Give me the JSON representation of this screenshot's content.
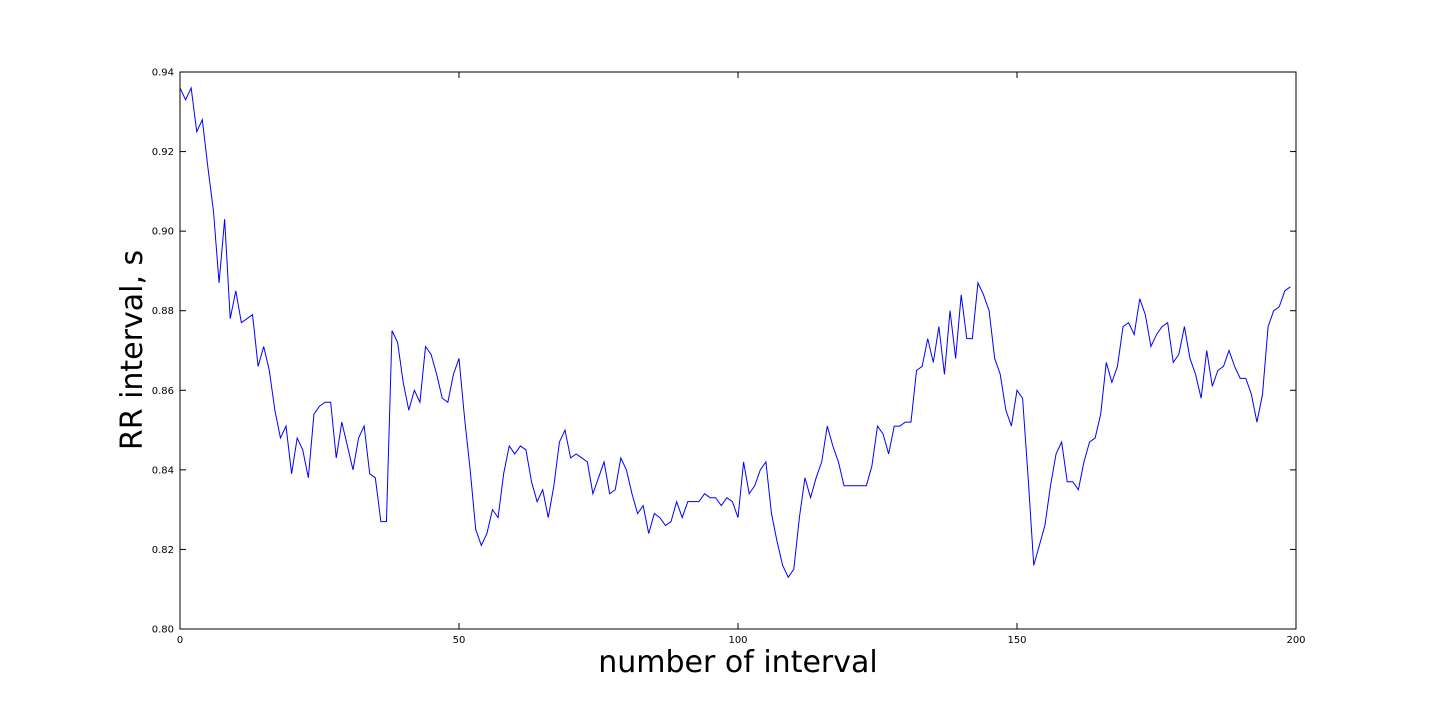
{
  "chart_data": {
    "type": "line",
    "xlabel": "number of interval",
    "ylabel": "RR interval, s",
    "x": [
      0,
      1,
      2,
      3,
      4,
      5,
      6,
      7,
      8,
      9,
      10,
      11,
      12,
      13,
      14,
      15,
      16,
      17,
      18,
      19,
      20,
      21,
      22,
      23,
      24,
      25,
      26,
      27,
      28,
      29,
      30,
      31,
      32,
      33,
      34,
      35,
      36,
      37,
      38,
      39,
      40,
      41,
      42,
      43,
      44,
      45,
      46,
      47,
      48,
      49,
      50,
      51,
      52,
      53,
      54,
      55,
      56,
      57,
      58,
      59,
      60,
      61,
      62,
      63,
      64,
      65,
      66,
      67,
      68,
      69,
      70,
      71,
      72,
      73,
      74,
      75,
      76,
      77,
      78,
      79,
      80,
      81,
      82,
      83,
      84,
      85,
      86,
      87,
      88,
      89,
      90,
      91,
      92,
      93,
      94,
      95,
      96,
      97,
      98,
      99,
      100,
      101,
      102,
      103,
      104,
      105,
      106,
      107,
      108,
      109,
      110,
      111,
      112,
      113,
      114,
      115,
      116,
      117,
      118,
      119,
      120,
      121,
      122,
      123,
      124,
      125,
      126,
      127,
      128,
      129,
      130,
      131,
      132,
      133,
      134,
      135,
      136,
      137,
      138,
      139,
      140,
      141,
      142,
      143,
      144,
      145,
      146,
      147,
      148,
      149,
      150,
      151,
      152,
      153,
      154,
      155,
      156,
      157,
      158,
      159,
      160,
      161,
      162,
      163,
      164,
      165,
      166,
      167,
      168,
      169,
      170,
      171,
      172,
      173,
      174,
      175,
      176,
      177,
      178,
      179,
      180,
      181,
      182,
      183,
      184,
      185,
      186,
      187,
      188,
      189,
      190,
      191,
      192,
      193,
      194,
      195,
      196,
      197,
      198,
      199
    ],
    "series": [
      {
        "color": "#0000ff",
        "values": [
          0.936,
          0.933,
          0.936,
          0.925,
          0.928,
          0.916,
          0.905,
          0.887,
          0.903,
          0.878,
          0.885,
          0.877,
          0.878,
          0.879,
          0.866,
          0.871,
          0.865,
          0.855,
          0.848,
          0.851,
          0.839,
          0.848,
          0.845,
          0.838,
          0.854,
          0.856,
          0.857,
          0.857,
          0.843,
          0.852,
          0.846,
          0.84,
          0.848,
          0.851,
          0.839,
          0.838,
          0.827,
          0.827,
          0.875,
          0.872,
          0.862,
          0.855,
          0.86,
          0.857,
          0.871,
          0.869,
          0.864,
          0.858,
          0.857,
          0.864,
          0.868,
          0.853,
          0.84,
          0.825,
          0.821,
          0.824,
          0.83,
          0.828,
          0.839,
          0.846,
          0.844,
          0.846,
          0.845,
          0.837,
          0.832,
          0.835,
          0.828,
          0.836,
          0.847,
          0.85,
          0.843,
          0.844,
          0.843,
          0.842,
          0.834,
          0.838,
          0.842,
          0.834,
          0.835,
          0.843,
          0.84,
          0.834,
          0.829,
          0.831,
          0.824,
          0.829,
          0.828,
          0.826,
          0.827,
          0.832,
          0.828,
          0.832,
          0.832,
          0.832,
          0.834,
          0.833,
          0.833,
          0.831,
          0.833,
          0.832,
          0.828,
          0.842,
          0.834,
          0.836,
          0.84,
          0.842,
          0.829,
          0.822,
          0.816,
          0.813,
          0.815,
          0.828,
          0.838,
          0.833,
          0.838,
          0.842,
          0.851,
          0.846,
          0.842,
          0.836,
          0.836,
          0.836,
          0.836,
          0.836,
          0.841,
          0.851,
          0.849,
          0.844,
          0.851,
          0.851,
          0.852,
          0.852,
          0.865,
          0.866,
          0.873,
          0.867,
          0.876,
          0.864,
          0.88,
          0.868,
          0.884,
          0.873,
          0.873,
          0.887,
          0.884,
          0.88,
          0.868,
          0.864,
          0.855,
          0.851,
          0.86,
          0.858,
          0.838,
          0.816,
          0.821,
          0.826,
          0.836,
          0.844,
          0.847,
          0.837,
          0.837,
          0.835,
          0.842,
          0.847,
          0.848,
          0.854,
          0.867,
          0.862,
          0.866,
          0.876,
          0.877,
          0.874,
          0.883,
          0.879,
          0.871,
          0.874,
          0.876,
          0.877,
          0.867,
          0.869,
          0.876,
          0.868,
          0.864,
          0.858,
          0.87,
          0.861,
          0.865,
          0.866,
          0.87,
          0.866,
          0.863,
          0.863,
          0.859,
          0.852,
          0.859,
          0.876,
          0.88,
          0.881,
          0.885,
          0.886
        ]
      }
    ],
    "xlim": [
      0,
      200
    ],
    "xticks": [
      0,
      50,
      100,
      150,
      200
    ],
    "ylim": [
      0.8,
      0.94
    ],
    "yticks": [
      {
        "value": 0.8,
        "label": "0.80"
      },
      0.82,
      0.84,
      0.86,
      0.88,
      {
        "value": 0.9,
        "label": "0.90"
      },
      0.92,
      0.94
    ]
  }
}
